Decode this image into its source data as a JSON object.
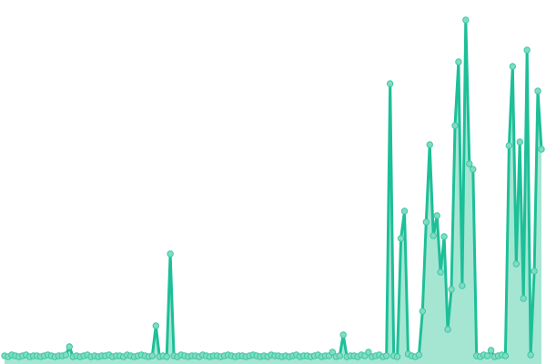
{
  "chart_data": {
    "type": "area",
    "title": "",
    "xlabel": "",
    "ylabel": "",
    "grid": false,
    "legend": "none",
    "ylim": [
      0,
      380
    ],
    "colors": {
      "line": "#1dbf98",
      "area": "#8fe0c8",
      "marker_fill": "#80dcc2",
      "marker_stroke": "#3cc7a3"
    },
    "series": [
      {
        "values": [
          3,
          2,
          4,
          3,
          2,
          3,
          4,
          2,
          3,
          3,
          2,
          3,
          4,
          3,
          2,
          3,
          3,
          4,
          13,
          2,
          3,
          2,
          3,
          4,
          2,
          3,
          2,
          3,
          3,
          4,
          2,
          3,
          3,
          2,
          4,
          3,
          2,
          3,
          4,
          3,
          2,
          3,
          36,
          2,
          3,
          2,
          115,
          3,
          2,
          4,
          3,
          2,
          3,
          3,
          2,
          4,
          3,
          2,
          3,
          3,
          2,
          3,
          4,
          3,
          2,
          3,
          3,
          2,
          3,
          4,
          3,
          2,
          3,
          2,
          4,
          3,
          3,
          2,
          3,
          2,
          3,
          4,
          2,
          3,
          3,
          2,
          3,
          4,
          2,
          3,
          3,
          7,
          2,
          3,
          26,
          2,
          3,
          3,
          2,
          4,
          3,
          7,
          2,
          3,
          4,
          2,
          3,
          302,
          3,
          2,
          132,
          162,
          5,
          3,
          2,
          4,
          52,
          150,
          235,
          135,
          157,
          95,
          134,
          32,
          76,
          256,
          326,
          80,
          372,
          214,
          208,
          3,
          2,
          4,
          3,
          9,
          2,
          3,
          4,
          3,
          234,
          321,
          104,
          238,
          66,
          339,
          4,
          96,
          294,
          230
        ]
      }
    ]
  }
}
